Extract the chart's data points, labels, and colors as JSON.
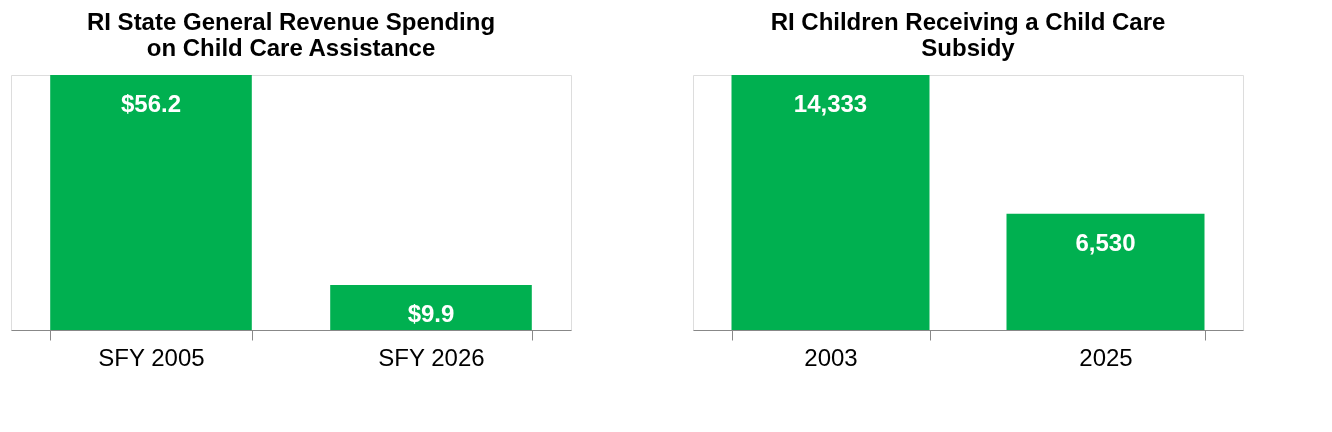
{
  "chart_data": [
    {
      "type": "bar",
      "title": "RI State General Revenue Spending on Child Care Assistance",
      "categories": [
        "SFY 2005",
        "SFY 2026"
      ],
      "values": [
        56.2,
        9.9
      ],
      "value_labels": [
        "$56.2",
        "$9.9"
      ],
      "color": "#00b050",
      "grid": false,
      "tick_labels": "x"
    },
    {
      "type": "bar",
      "title": "RI Children Receiving a Child Care Subsidy",
      "categories": [
        "2003",
        "2025"
      ],
      "values": [
        14333,
        6530
      ],
      "value_labels": [
        "14,333",
        "6,530"
      ],
      "color": "#00b050",
      "grid": false,
      "tick_labels": "x"
    }
  ]
}
